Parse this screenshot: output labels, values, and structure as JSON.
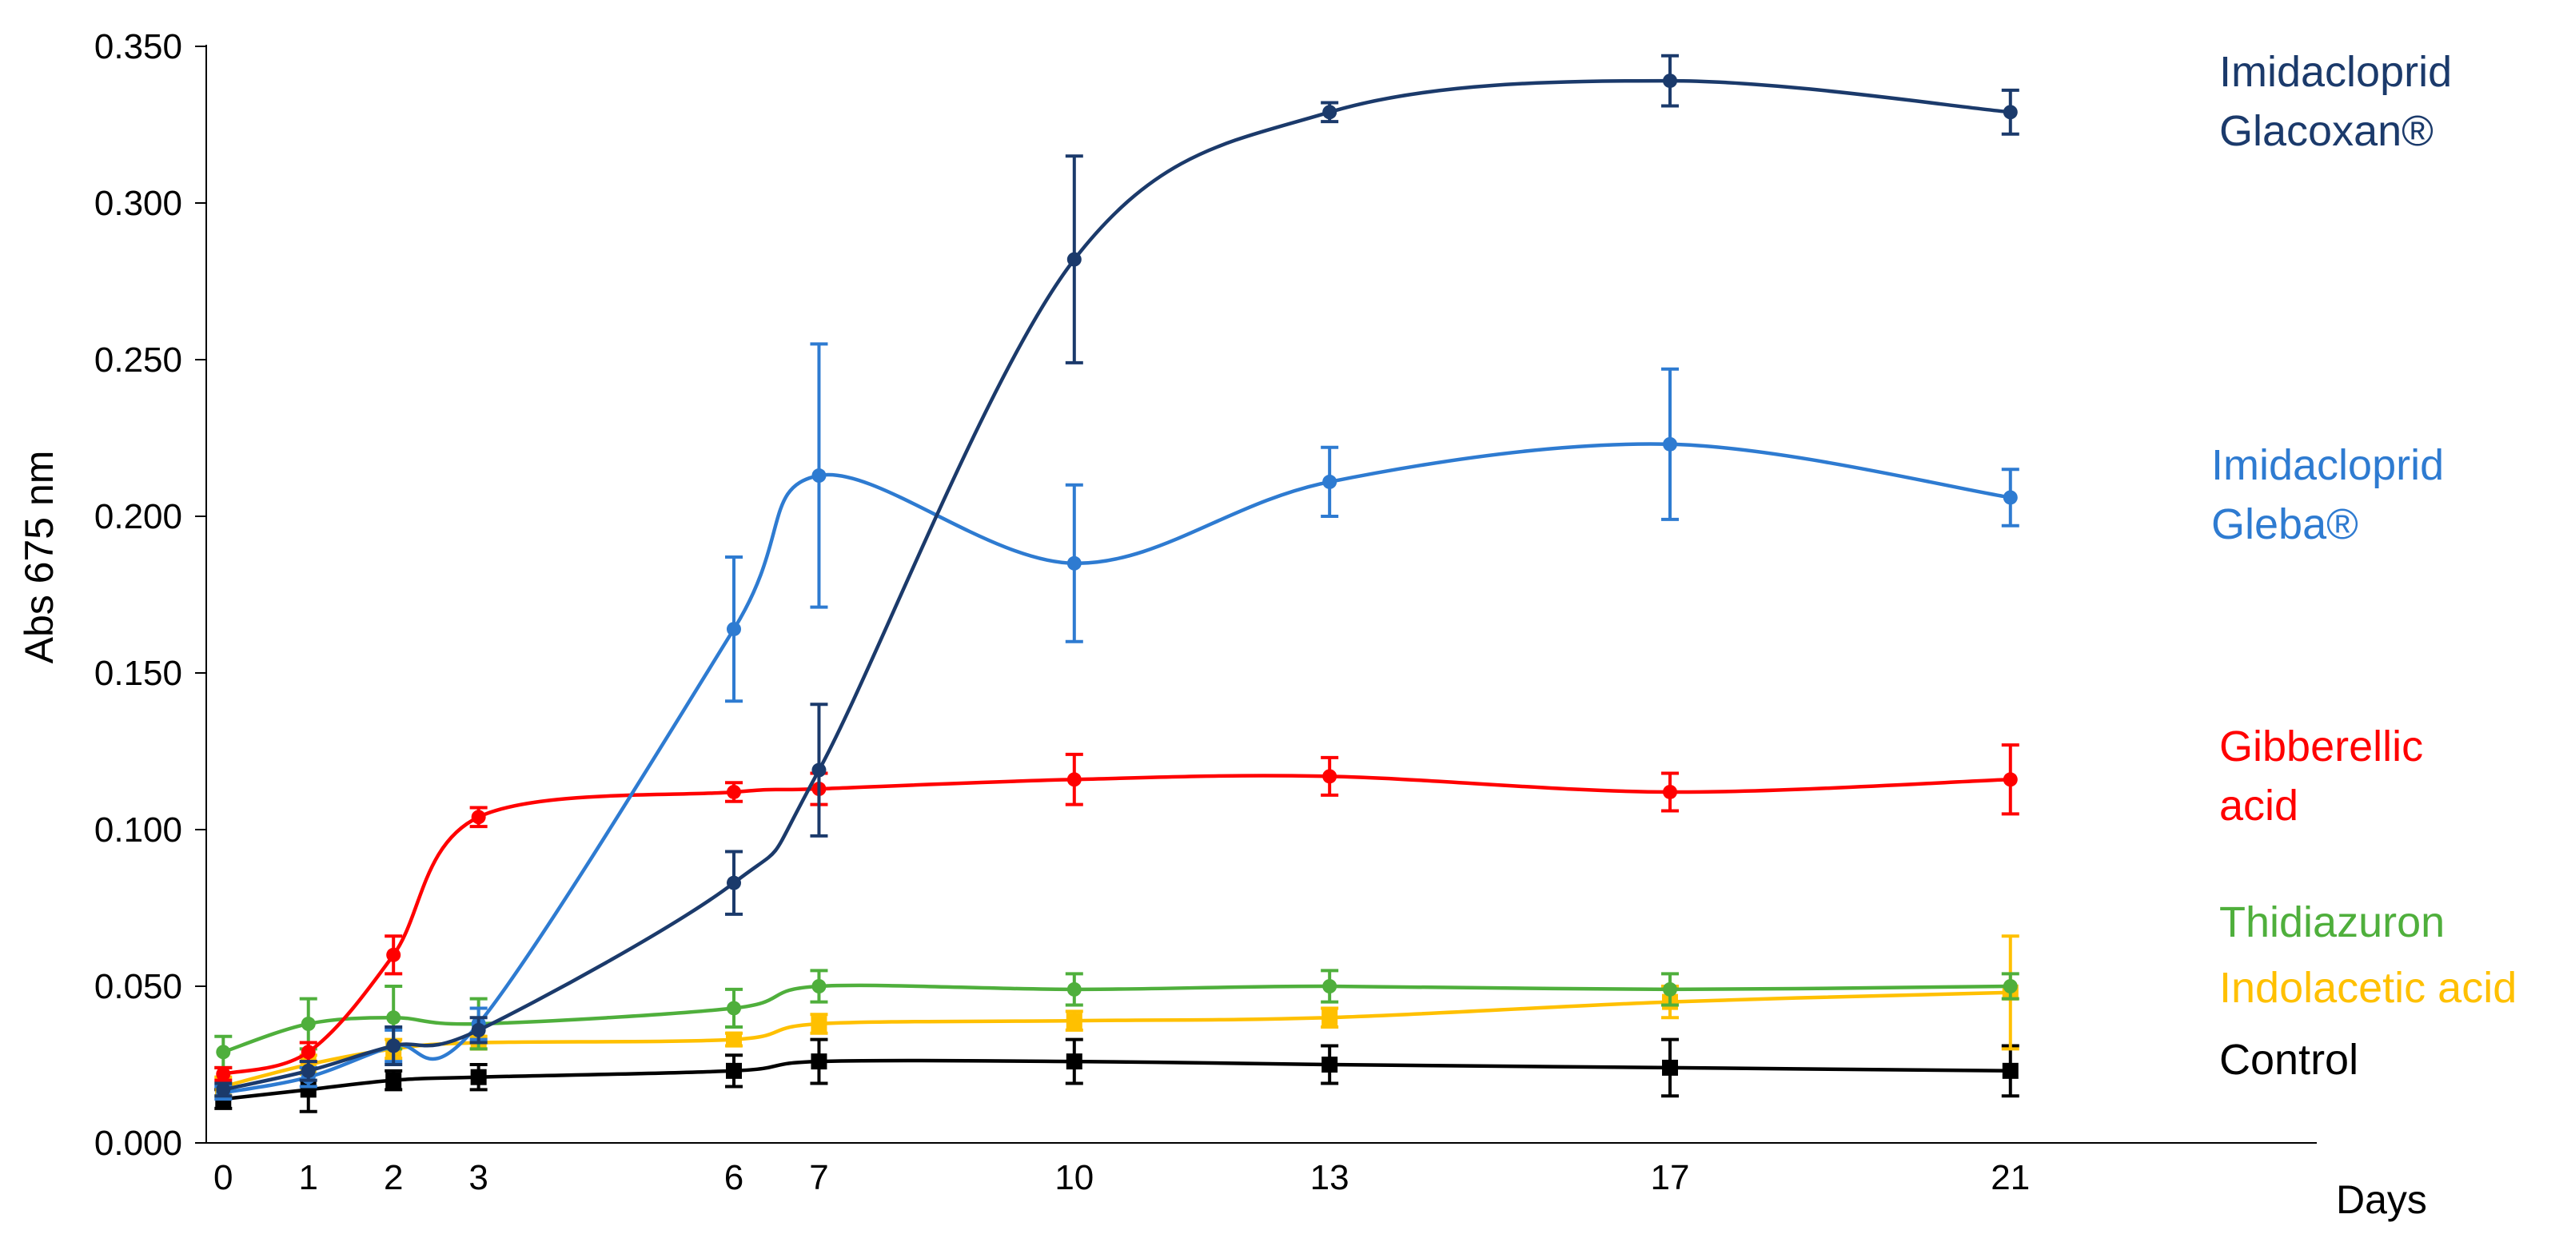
{
  "chart_data": {
    "type": "line",
    "title": "",
    "xlabel": "Days",
    "ylabel": "Abs 675 nm",
    "x": [
      0,
      1,
      2,
      3,
      6,
      7,
      10,
      13,
      17,
      21
    ],
    "x_tick_labels": [
      "0",
      "1",
      "2",
      "3",
      "6",
      "7",
      "10",
      "13",
      "17",
      "21"
    ],
    "ylim": [
      0,
      0.35
    ],
    "y_tick_labels": [
      "0.000",
      "0.050",
      "0.100",
      "0.150",
      "0.200",
      "0.250",
      "0.300",
      "0.350"
    ],
    "grid": false,
    "legend": "inline labels at right end of each series",
    "series": [
      {
        "name": "Control",
        "label_lines": [
          "Control"
        ],
        "color": "#000000",
        "marker": "square",
        "values": [
          0.014,
          0.017,
          0.02,
          0.021,
          0.023,
          0.026,
          0.026,
          0.025,
          0.024,
          0.023
        ],
        "errors": [
          0.003,
          0.007,
          0.003,
          0.004,
          0.005,
          0.007,
          0.007,
          0.006,
          0.009,
          0.008
        ]
      },
      {
        "name": "Indolacetic acid",
        "label_lines": [
          "Indolacetic acid"
        ],
        "color": "#FFC000",
        "marker": "square",
        "values": [
          0.018,
          0.025,
          0.03,
          0.032,
          0.033,
          0.038,
          0.039,
          0.04,
          0.045,
          0.048
        ],
        "errors": [
          0.003,
          0.003,
          0.003,
          0.002,
          0.002,
          0.003,
          0.003,
          0.003,
          0.005,
          0.018
        ]
      },
      {
        "name": "Thidiazuron",
        "label_lines": [
          "Thidiazuron"
        ],
        "color": "#4FAF3C",
        "marker": "circle",
        "values": [
          0.029,
          0.038,
          0.04,
          0.038,
          0.043,
          0.05,
          0.049,
          0.05,
          0.049,
          0.05
        ],
        "errors": [
          0.005,
          0.008,
          0.01,
          0.008,
          0.006,
          0.005,
          0.005,
          0.005,
          0.005,
          0.004
        ]
      },
      {
        "name": "Gibberellic acid",
        "label_lines": [
          "Gibberellic",
          "acid"
        ],
        "color": "#FF0000",
        "marker": "circle",
        "values": [
          0.022,
          0.029,
          0.06,
          0.104,
          0.112,
          0.113,
          0.116,
          0.117,
          0.112,
          0.116
        ],
        "errors": [
          0.002,
          0.003,
          0.006,
          0.003,
          0.003,
          0.005,
          0.008,
          0.006,
          0.006,
          0.011
        ]
      },
      {
        "name": "Imidacloprid Gleba®",
        "label_lines": [
          "Imidacloprid",
          "Gleba®"
        ],
        "color": "#2E7BD1",
        "marker": "circle",
        "values": [
          0.016,
          0.021,
          0.031,
          0.038,
          0.164,
          0.213,
          0.185,
          0.211,
          0.223,
          0.206
        ],
        "errors": [
          0.002,
          0.003,
          0.005,
          0.005,
          0.023,
          0.042,
          0.025,
          0.011,
          0.024,
          0.009
        ]
      },
      {
        "name": "Imidacloprid Glacoxan®",
        "label_lines": [
          "Imidacloprid",
          "Glacoxan®"
        ],
        "color": "#1B3A6B",
        "marker": "circle",
        "values": [
          0.017,
          0.023,
          0.031,
          0.036,
          0.083,
          0.119,
          0.282,
          0.329,
          0.339,
          0.329
        ],
        "errors": [
          0.002,
          0.003,
          0.006,
          0.004,
          0.01,
          0.021,
          0.033,
          0.003,
          0.008,
          0.007
        ]
      }
    ]
  }
}
